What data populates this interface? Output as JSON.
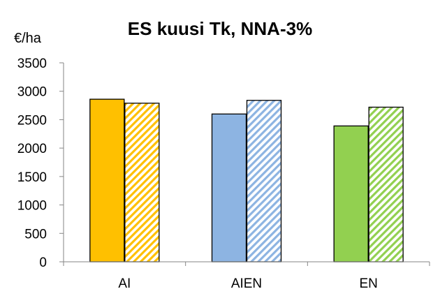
{
  "chart_data": {
    "type": "bar",
    "title": "ES kuusi Tk, NNA-3%",
    "ylabel": "€/ha",
    "xlabel": "",
    "ylim": [
      0,
      3500
    ],
    "yticks": [
      0,
      500,
      1000,
      1500,
      2000,
      2500,
      3000,
      3500
    ],
    "grid": false,
    "legend": "none",
    "categories": [
      "AI",
      "AIEN",
      "EN"
    ],
    "series": [
      {
        "fill": "solid",
        "values": [
          2860,
          2600,
          2390
        ]
      },
      {
        "fill": "hatched",
        "values": [
          2790,
          2840,
          2720
        ]
      }
    ],
    "colors": {
      "AI": "#FFC000",
      "AIEN": "#8DB4E2",
      "EN": "#92D050",
      "outline": "#000000"
    }
  }
}
